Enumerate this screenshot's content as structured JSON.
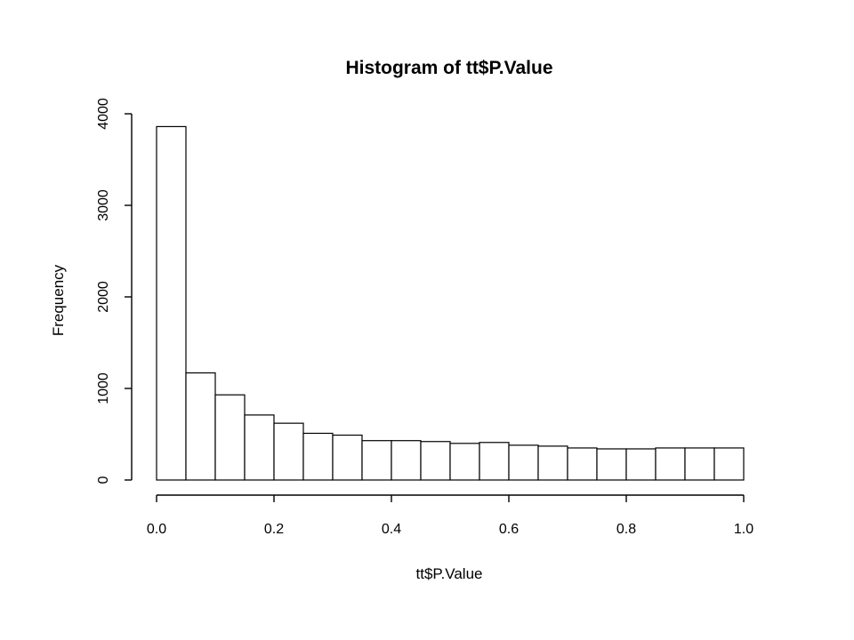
{
  "chart_data": {
    "type": "bar",
    "title": "Histogram of tt$P.Value",
    "xlabel": "tt$P.Value",
    "ylabel": "Frequency",
    "bin_edges": [
      0.0,
      0.05,
      0.1,
      0.15,
      0.2,
      0.25,
      0.3,
      0.35,
      0.4,
      0.45,
      0.5,
      0.55,
      0.6,
      0.65,
      0.7,
      0.75,
      0.8,
      0.85,
      0.9,
      0.95,
      1.0
    ],
    "values": [
      3860,
      1170,
      930,
      710,
      620,
      510,
      490,
      430,
      430,
      420,
      400,
      410,
      380,
      370,
      350,
      340,
      340,
      350,
      350,
      350
    ],
    "xlim": [
      0.0,
      1.0
    ],
    "ylim": [
      0,
      4000
    ],
    "x_ticks": [
      "0.0",
      "0.2",
      "0.4",
      "0.6",
      "0.8",
      "1.0"
    ],
    "y_ticks": [
      "0",
      "1000",
      "2000",
      "3000",
      "4000"
    ],
    "grid": false,
    "bar_fill": "#ffffff",
    "bar_stroke": "#000000"
  }
}
